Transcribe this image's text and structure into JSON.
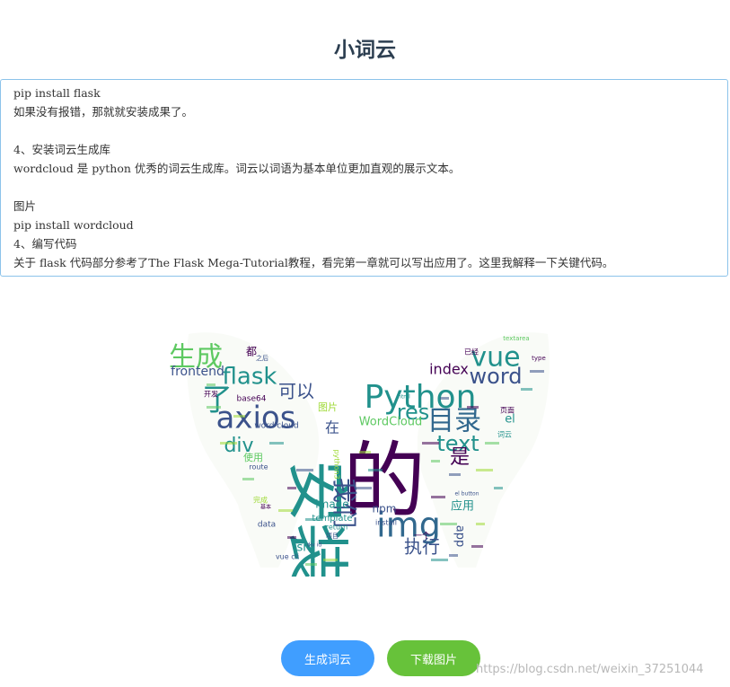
{
  "page": {
    "title": "小词云"
  },
  "editor": {
    "lines": [
      "pip install flask",
      "如果没有报错，那就就安装成果了。",
      "",
      "4、安装词云生成库",
      "wordcloud 是 python 优秀的词云生成库。词云以词语为基本单位更加直观的展示文本。",
      "",
      "图片",
      "pip install wordcloud",
      "4、编写代码",
      "关于 flask 代码部分参考了The Flask Mega-Tutorial教程，看完第一章就可以写出应用了。这里我解释一下关键代码。"
    ]
  },
  "wordcloud": {
    "colors": {
      "purple": "#440154",
      "indigo": "#3b528b",
      "teal": "#21918c",
      "green": "#5ec962",
      "lime": "#a0da39",
      "blue": "#31688e"
    },
    "words": [
      {
        "text": "的",
        "size": 92,
        "color": "#440154",
        "vertical": false
      },
      {
        "text": "安装",
        "size": 70,
        "color": "#21918c",
        "vertical": true
      },
      {
        "text": "img",
        "size": 38,
        "color": "#31688e",
        "vertical": false
      },
      {
        "text": "Python",
        "size": 36,
        "color": "#21918c",
        "vertical": false
      },
      {
        "text": "axios",
        "size": 34,
        "color": "#3b528b",
        "vertical": false
      },
      {
        "text": "目录",
        "size": 30,
        "color": "#31688e",
        "vertical": false
      },
      {
        "text": "vue",
        "size": 30,
        "color": "#21918c",
        "vertical": false
      },
      {
        "text": "生成",
        "size": 30,
        "color": "#5ec962",
        "vertical": false
      },
      {
        "text": "了",
        "size": 34,
        "color": "#21918c",
        "vertical": false
      },
      {
        "text": "flask",
        "size": 26,
        "color": "#21918c",
        "vertical": false
      },
      {
        "text": "word",
        "size": 24,
        "color": "#3b528b",
        "vertical": false
      },
      {
        "text": "我们",
        "size": 28,
        "color": "#3b528b",
        "vertical": true
      },
      {
        "text": "text",
        "size": 24,
        "color": "#21918c",
        "vertical": false
      },
      {
        "text": "res",
        "size": 24,
        "color": "#21918c",
        "vertical": false
      },
      {
        "text": "是",
        "size": 22,
        "color": "#440154",
        "vertical": false
      },
      {
        "text": "div",
        "size": 22,
        "color": "#21918c",
        "vertical": false
      },
      {
        "text": "可以",
        "size": 20,
        "color": "#3b528b",
        "vertical": false
      },
      {
        "text": "执行",
        "size": 20,
        "color": "#3b528b",
        "vertical": false
      },
      {
        "text": "index",
        "size": 16,
        "color": "#440154",
        "vertical": false
      },
      {
        "text": "frontend",
        "size": 14,
        "color": "#3b528b",
        "vertical": false
      },
      {
        "text": "WordCloud",
        "size": 13,
        "color": "#5ec962",
        "vertical": false
      },
      {
        "text": "在",
        "size": 16,
        "color": "#3b528b",
        "vertical": false
      },
      {
        "text": "应用",
        "size": 13,
        "color": "#21918c",
        "vertical": false
      },
      {
        "text": "image",
        "size": 12,
        "color": "#21918c",
        "vertical": false
      },
      {
        "text": "npm",
        "size": 12,
        "color": "#3b528b",
        "vertical": false
      },
      {
        "text": "src",
        "size": 13,
        "color": "#21918c",
        "vertical": false
      },
      {
        "text": "el",
        "size": 13,
        "color": "#21918c",
        "vertical": false
      },
      {
        "text": "app",
        "size": 13,
        "color": "#3b528b",
        "vertical": true
      },
      {
        "text": "使用",
        "size": 11,
        "color": "#5ec962",
        "vertical": false
      },
      {
        "text": "图片",
        "size": 11,
        "color": "#a0da39",
        "vertical": false
      },
      {
        "text": "template",
        "size": 10,
        "color": "#21918c",
        "vertical": false
      },
      {
        "text": "word cloud",
        "size": 9,
        "color": "#3b528b",
        "vertical": false
      },
      {
        "text": "base64",
        "size": 9,
        "color": "#440154",
        "vertical": false
      },
      {
        "text": "route",
        "size": 8,
        "color": "#3b528b",
        "vertical": false
      },
      {
        "text": "data",
        "size": 9,
        "color": "#3b528b",
        "vertical": false
      },
      {
        "text": "vue cli",
        "size": 8,
        "color": "#3b528b",
        "vertical": false
      },
      {
        "text": "install",
        "size": 8,
        "color": "#3b528b",
        "vertical": false
      },
      {
        "text": "return",
        "size": 8,
        "color": "#21918c",
        "vertical": false
      },
      {
        "text": "一个",
        "size": 9,
        "color": "#440154",
        "vertical": false
      },
      {
        "text": "页面",
        "size": 8,
        "color": "#440154",
        "vertical": false
      },
      {
        "text": "词云",
        "size": 8,
        "color": "#21918c",
        "vertical": false
      },
      {
        "text": "已经",
        "size": 8,
        "color": "#440154",
        "vertical": false
      },
      {
        "text": "都",
        "size": 12,
        "color": "#440154",
        "vertical": false
      },
      {
        "text": "开发",
        "size": 8,
        "color": "#440154",
        "vertical": false
      },
      {
        "text": "完成",
        "size": 8,
        "color": "#a0da39",
        "vertical": false
      },
      {
        "text": "项目",
        "size": 7,
        "color": "#3b528b",
        "vertical": false
      },
      {
        "text": "python3",
        "size": 8,
        "color": "#a0da39",
        "vertical": true
      },
      {
        "text": "textarea",
        "size": 7,
        "color": "#5ec962",
        "vertical": false
      },
      {
        "text": "type",
        "size": 7,
        "color": "#440154",
        "vertical": false
      },
      {
        "text": "之后",
        "size": 7,
        "color": "#3b528b",
        "vertical": false
      },
      {
        "text": "html",
        "size": 6,
        "color": "#21918c",
        "vertical": false
      },
      {
        "text": "基本",
        "size": 6,
        "color": "#440154",
        "vertical": false
      },
      {
        "text": "el button",
        "size": 6,
        "color": "#3b528b",
        "vertical": false
      },
      {
        "text": "div id",
        "size": 6,
        "color": "#3b528b",
        "vertical": false
      }
    ]
  },
  "buttons": {
    "generate": "生成词云",
    "download": "下载图片"
  },
  "watermark": "https://blog.csdn.net/weixin_37251044"
}
